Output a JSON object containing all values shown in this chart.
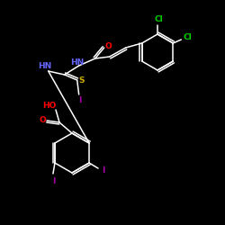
{
  "background_color": "#000000",
  "bond_color": "#ffffff",
  "atom_colors": {
    "O": "#ff0000",
    "N": "#6666ff",
    "S": "#ccaa00",
    "I": "#aa00aa",
    "Cl": "#00cc00",
    "HO": "#ff0000",
    "C": "#ffffff"
  },
  "figsize": [
    2.5,
    2.5
  ],
  "dpi": 100,
  "lw": 1.1
}
